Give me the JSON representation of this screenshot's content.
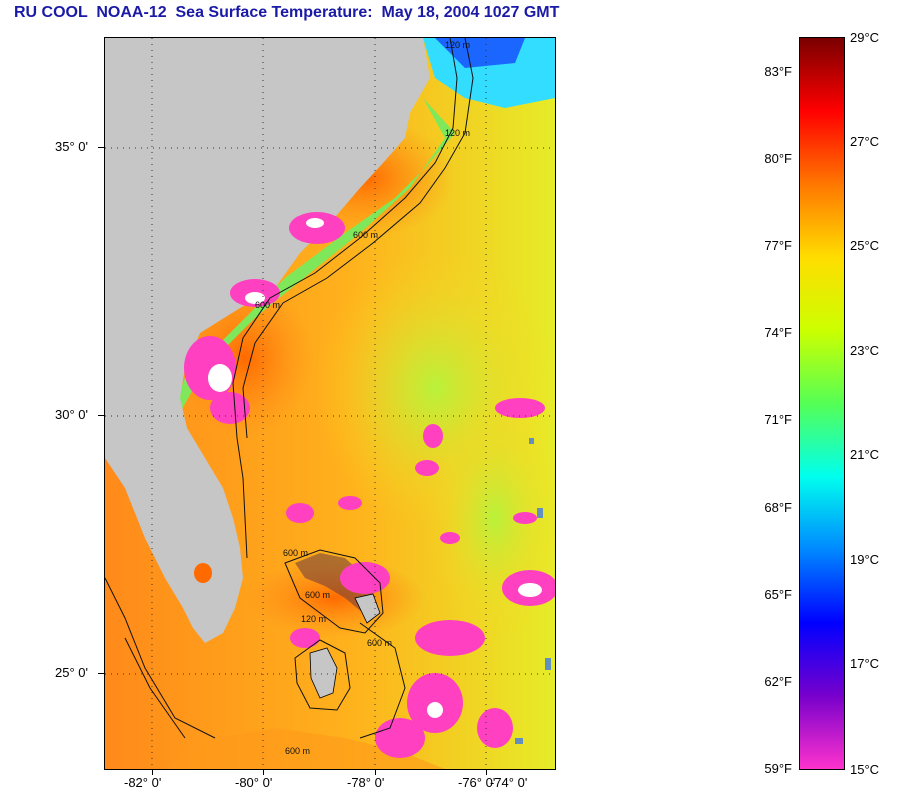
{
  "title": "RU COOL  NOAA-12  Sea Surface Temperature:  May 18, 2004 1027 GMT",
  "latitude_labels": [
    "35° 0'",
    "30° 0'",
    "25° 0'"
  ],
  "longitude_labels": [
    "-82° 0'",
    "-80° 0'",
    "-78° 0'",
    "-76° 0'",
    "-74° 0'"
  ],
  "contour_labels": [
    "120 m",
    "120 m",
    "600 m",
    "600 m",
    "600 m",
    "600 m",
    "600 m",
    "120 m",
    "600 m"
  ],
  "colorbar": {
    "fahrenheit_labels": [
      "83°F",
      "80°F",
      "77°F",
      "74°F",
      "71°F",
      "68°F",
      "65°F",
      "62°F",
      "59°F"
    ],
    "celsius_labels": [
      "29°C",
      "27°C",
      "25°C",
      "23°C",
      "21°C",
      "19°C",
      "17°C",
      "15°C"
    ],
    "colors": [
      "#7a0000",
      "#ff0000",
      "#ff7700",
      "#ffdd00",
      "#ccff00",
      "#55ff55",
      "#00ffee",
      "#0088ff",
      "#0000ff",
      "#7700cc",
      "#ff33cc"
    ]
  },
  "colors": {
    "land": "#c6c6c6",
    "ocean_warm": "#ff8c1a",
    "ocean_mid": "#ffcc22",
    "ocean_cool": "#c8f030",
    "shelf": "#66ee66",
    "cloud_mask": "#ff40c0",
    "title": "#1a1aa6"
  }
}
